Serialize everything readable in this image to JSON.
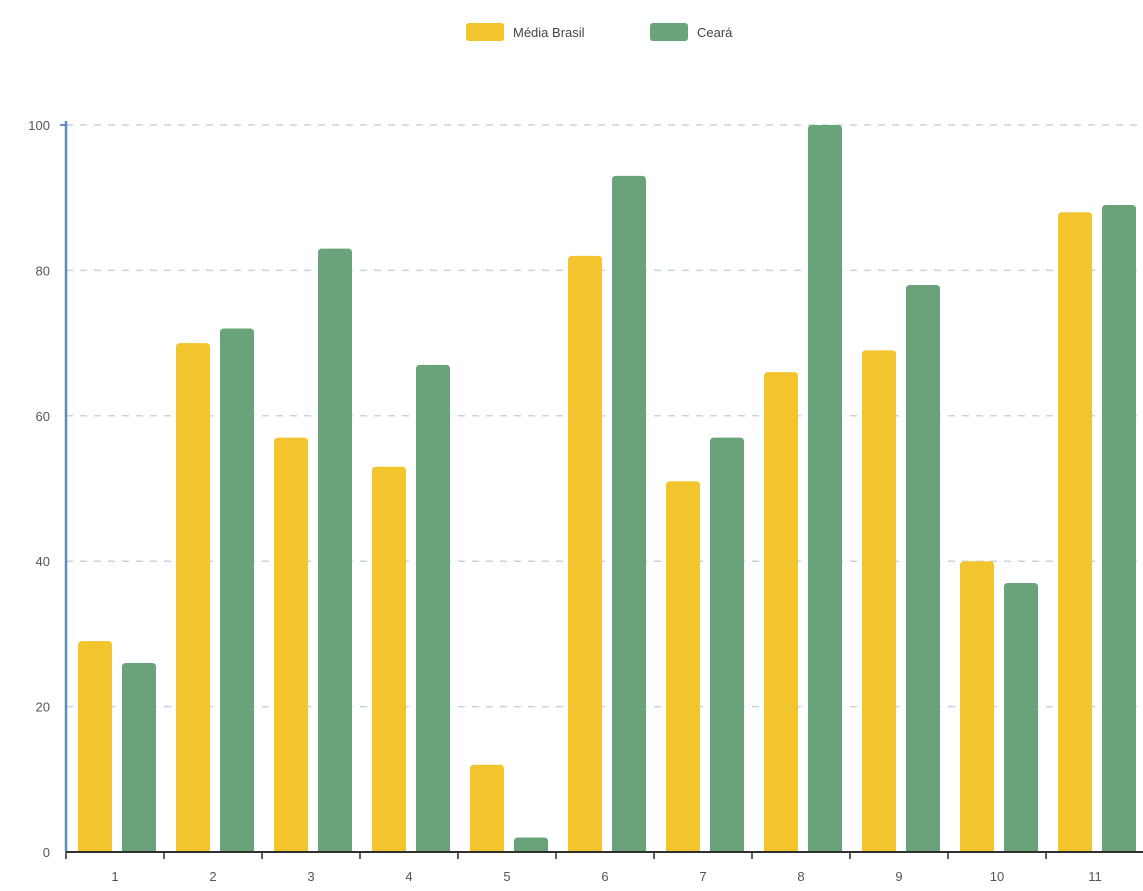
{
  "colors": {
    "media_brasil": "#F2C42E",
    "ceara": "#6AA37A",
    "axis": "#5B8BC4",
    "grid": "#C9D3DC"
  },
  "legend": {
    "placement": "top-center",
    "items": [
      {
        "label": "Média Brasil",
        "color": "#F2C42E"
      },
      {
        "label": "Ceará",
        "color": "#6AA37A"
      }
    ]
  },
  "chart_data": {
    "type": "bar",
    "title": "",
    "xlabel": "",
    "ylabel": "",
    "categories": [
      "1",
      "2",
      "3",
      "4",
      "5",
      "6",
      "7",
      "8",
      "9",
      "10",
      "11"
    ],
    "series": [
      {
        "name": "Média Brasil",
        "values": [
          29,
          70,
          57,
          53,
          12,
          82,
          51,
          66,
          69,
          40,
          88
        ]
      },
      {
        "name": "Ceará",
        "values": [
          26,
          72,
          83,
          67,
          2,
          93,
          57,
          100,
          78,
          37,
          89
        ]
      }
    ],
    "ylim": [
      0,
      100
    ],
    "yticks": [
      "0",
      "20",
      "40",
      "60",
      "80",
      "100"
    ],
    "grid": "horizontal-dashed"
  }
}
